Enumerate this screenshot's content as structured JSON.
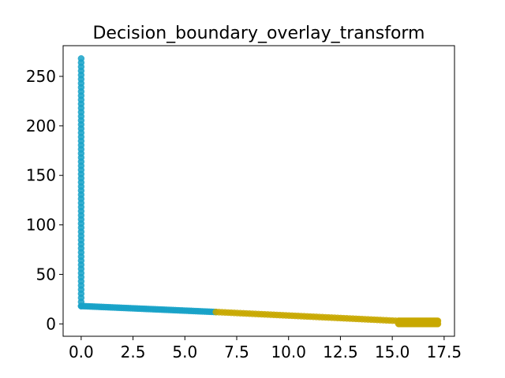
{
  "chart_data": {
    "type": "scatter",
    "title": "Decision_boundary_overlay_transform",
    "xlabel": "",
    "ylabel": "",
    "xlim": [
      -0.87,
      18.0
    ],
    "ylim": [
      -12.5,
      281
    ],
    "xticks": [
      0.0,
      2.5,
      5.0,
      7.5,
      10.0,
      12.5,
      15.0,
      17.5
    ],
    "xtick_labels": [
      "0.0",
      "2.5",
      "5.0",
      "7.5",
      "10.0",
      "12.5",
      "15.0",
      "17.5"
    ],
    "yticks": [
      0,
      50,
      100,
      150,
      200,
      250
    ],
    "ytick_labels": [
      "0",
      "50",
      "100",
      "150",
      "200",
      "250"
    ],
    "grid": false,
    "series": [
      {
        "color": "#17a2c8",
        "segments": [
          {
            "x": [
              0.0,
              0.0
            ],
            "y": [
              18,
              268
            ]
          },
          {
            "x": [
              0.0,
              6.5
            ],
            "y": [
              18,
              12
            ]
          }
        ]
      },
      {
        "color": "#c8a800",
        "segments": [
          {
            "x": [
              6.5,
              15.3
            ],
            "y": [
              12,
              3
            ]
          },
          {
            "x": [
              15.3,
              17.2
            ],
            "y": [
              0,
              0
            ]
          },
          {
            "x": [
              15.3,
              17.2
            ],
            "y": [
              3,
              3
            ]
          }
        ]
      }
    ]
  }
}
